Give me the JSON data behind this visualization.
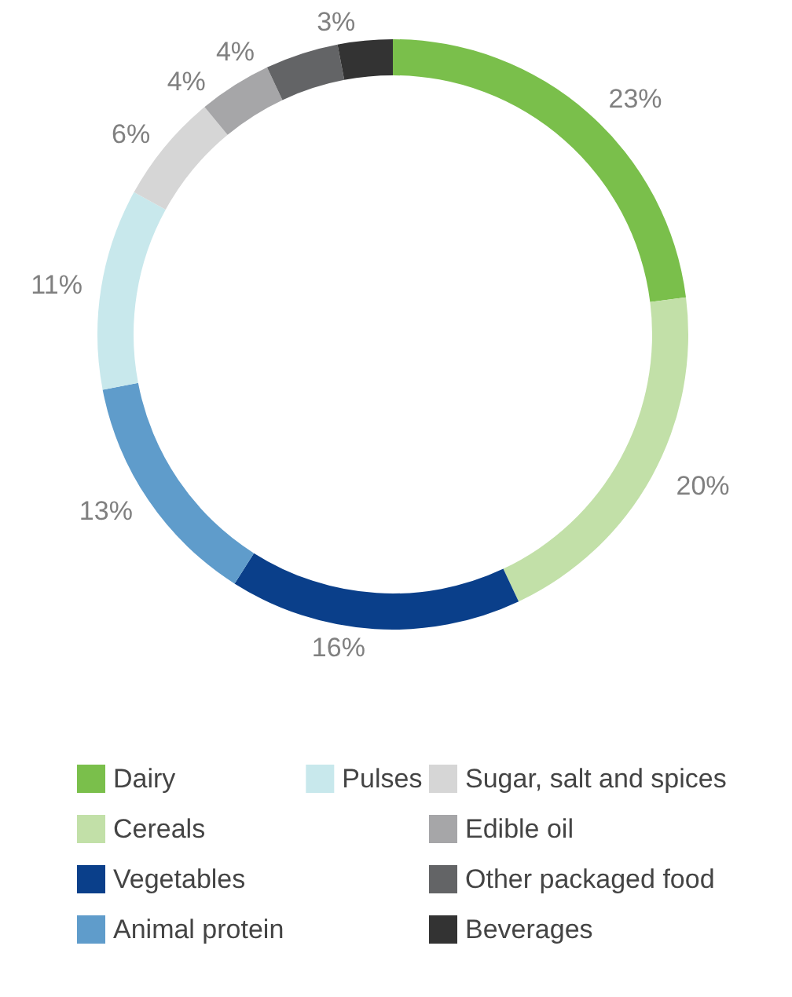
{
  "chart_data": {
    "type": "donut",
    "categories": [
      "Dairy",
      "Cereals",
      "Vegetables",
      "Animal protein",
      "Pulses",
      "Sugar, salt and spices",
      "Edible oil",
      "Other packaged food",
      "Beverages"
    ],
    "values": [
      23,
      20,
      16,
      13,
      11,
      6,
      4,
      4,
      3
    ],
    "value_labels": [
      "23%",
      "20%",
      "16%",
      "13%",
      "11%",
      "6%",
      "4%",
      "4%",
      "3%"
    ],
    "colors": [
      "#7abf4b",
      "#c2e0a8",
      "#0a3f8a",
      "#5f9ccb",
      "#c8e8ec",
      "#d6d6d6",
      "#a6a6a8",
      "#636466",
      "#333333"
    ],
    "legend": "bottom"
  }
}
